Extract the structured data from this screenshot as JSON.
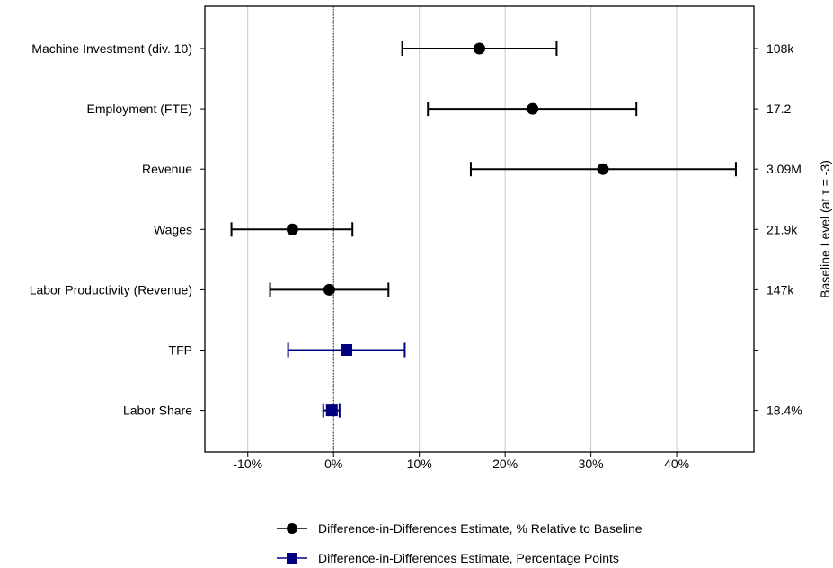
{
  "chart_data": {
    "type": "forest",
    "title": "",
    "xlabel": "",
    "y2label": "Baseline Level (at τ = -3)",
    "xlim": [
      -15,
      49
    ],
    "xticks": [
      {
        "value": -10,
        "label": "-10%"
      },
      {
        "value": 0,
        "label": "0%"
      },
      {
        "value": 10,
        "label": "10%"
      },
      {
        "value": 20,
        "label": "20%"
      },
      {
        "value": 30,
        "label": "30%"
      },
      {
        "value": 40,
        "label": "40%"
      }
    ],
    "grid": "vertical",
    "reference_line": 0,
    "rows": [
      {
        "label": "Machine Investment (div. 10)",
        "estimate": 17.0,
        "ci": [
          8.0,
          26.0
        ],
        "baseline": "108k",
        "series": "pct"
      },
      {
        "label": "Employment (FTE)",
        "estimate": 23.2,
        "ci": [
          11.0,
          35.3
        ],
        "baseline": "17.2",
        "series": "pct"
      },
      {
        "label": "Revenue",
        "estimate": 31.4,
        "ci": [
          16.0,
          46.9
        ],
        "baseline": "3.09M",
        "series": "pct"
      },
      {
        "label": "Wages",
        "estimate": -4.8,
        "ci": [
          -11.9,
          2.2
        ],
        "baseline": "21.9k",
        "series": "pct"
      },
      {
        "label": "Labor Productivity (Revenue)",
        "estimate": -0.5,
        "ci": [
          -7.4,
          6.4
        ],
        "baseline": "147k",
        "series": "pct"
      },
      {
        "label": "TFP",
        "estimate": 1.5,
        "ci": [
          -5.3,
          8.3
        ],
        "baseline": "",
        "series": "pp"
      },
      {
        "label": "Labor Share",
        "estimate": -0.2,
        "ci": [
          -1.2,
          0.7
        ],
        "baseline": "18.4%",
        "series": "pp"
      }
    ],
    "series": [
      {
        "key": "pct",
        "name": "Difference-in-Differences Estimate, % Relative to Baseline",
        "color": "#000000",
        "marker": "circle"
      },
      {
        "key": "pp",
        "name": "Difference-in-Differences Estimate, Percentage Points",
        "color": "#00007f",
        "marker": "square"
      }
    ],
    "legend": "bottom-center"
  }
}
